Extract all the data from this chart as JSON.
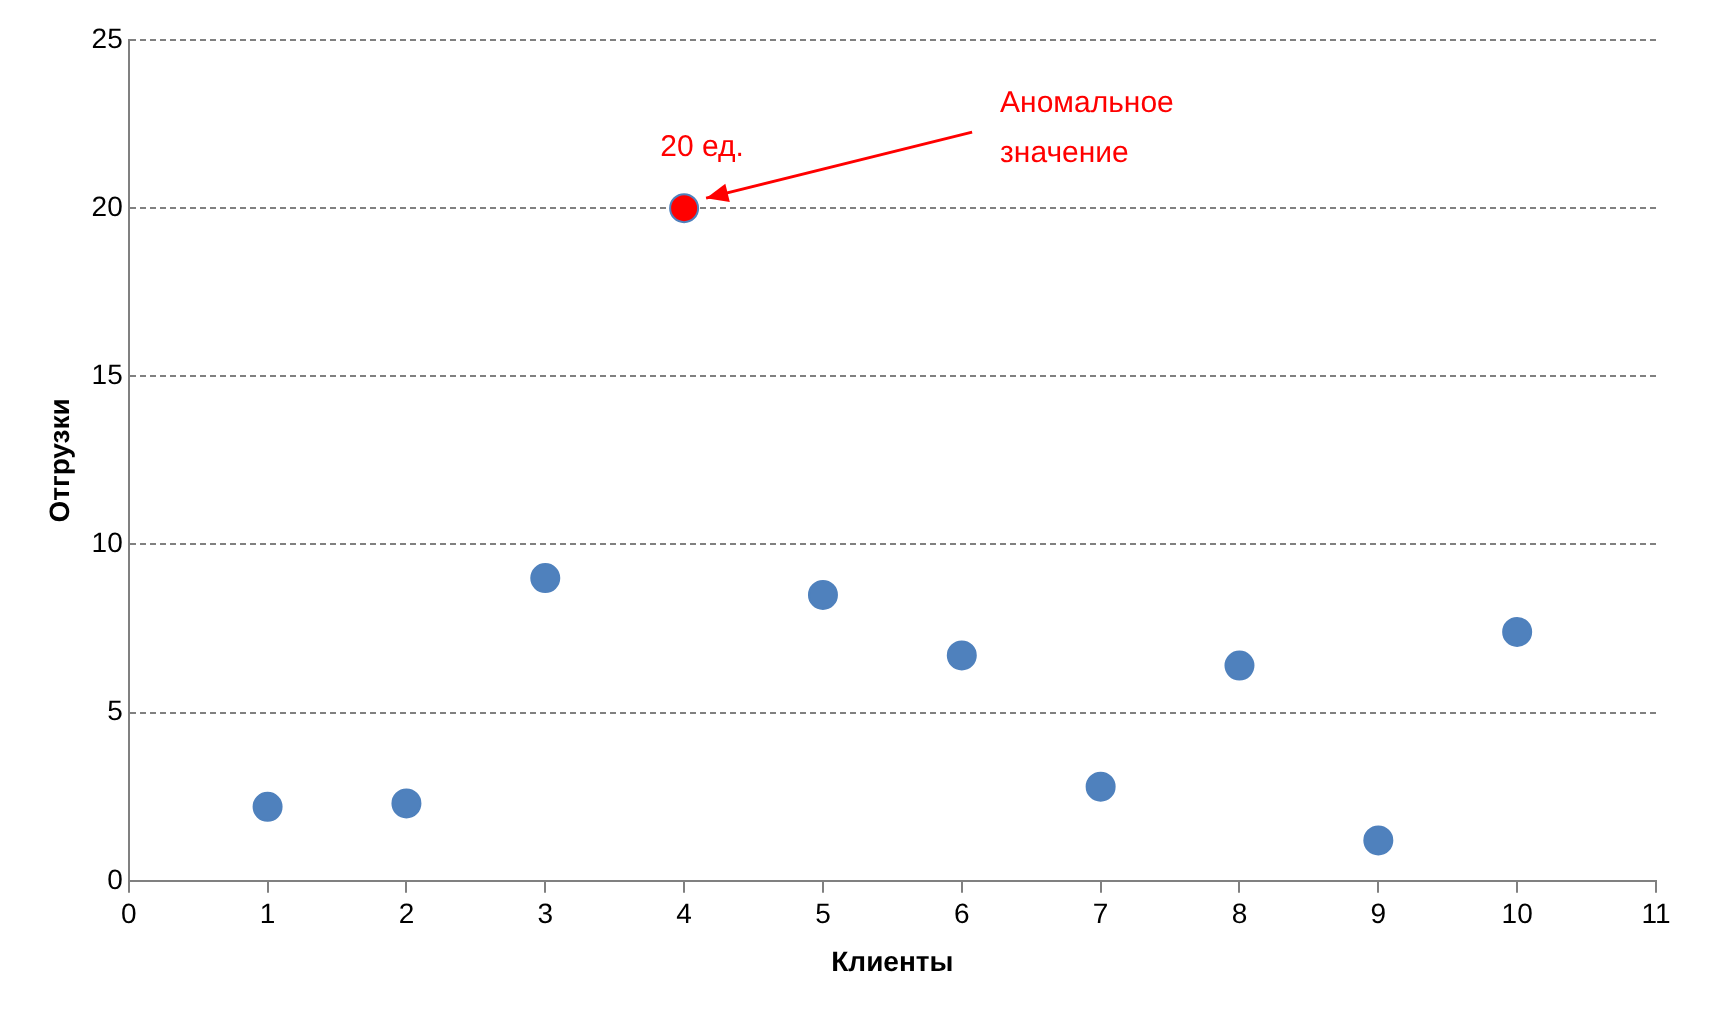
{
  "chart_data": {
    "type": "scatter",
    "xlabel": "Клиенты",
    "ylabel": "Отгрузки",
    "x": [
      1,
      2,
      3,
      4,
      5,
      6,
      7,
      8,
      9,
      10
    ],
    "values": [
      2.2,
      2.3,
      9.0,
      20,
      8.5,
      6.7,
      2.8,
      6.4,
      1.2,
      7.4
    ],
    "colors": [
      "#4f81bd",
      "#4f81bd",
      "#4f81bd",
      "#ff0000",
      "#4f81bd",
      "#4f81bd",
      "#4f81bd",
      "#4f81bd",
      "#4f81bd",
      "#4f81bd"
    ],
    "xlim": [
      0,
      11
    ],
    "xticks": [
      0,
      1,
      2,
      3,
      4,
      5,
      6,
      7,
      8,
      9,
      10,
      11
    ],
    "ylim": [
      0,
      25
    ],
    "yticks": [
      0,
      5,
      10,
      15,
      20,
      25
    ],
    "grid": "y",
    "marker": "circle",
    "legend": false,
    "annotations": [
      {
        "text": "20 ед.",
        "x": 4,
        "y": 20
      },
      "Аномальное значение"
    ]
  }
}
